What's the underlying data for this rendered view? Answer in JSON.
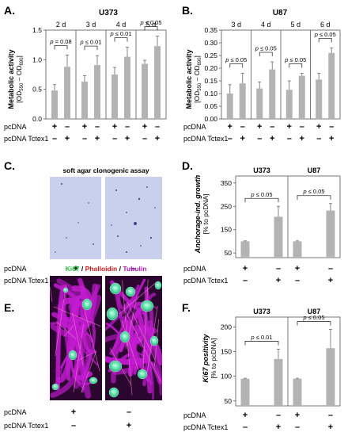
{
  "colors": {
    "bar": "#b3b3b3",
    "agar_bg": "#c9d0ee",
    "colony": "#3a4696",
    "tubulin": "#c21bd0",
    "nucleus": "#55d8a3",
    "phalloidin": "#e04040"
  },
  "icons": [
    "colony-dot",
    "fluorescence-micrograph"
  ],
  "panels": {
    "A": {
      "letter": "A.",
      "cell_line": "U373",
      "ylabel1": "Metabolic activity",
      "ylabel2": "[OD",
      "ylabel_sub1": "550",
      "ylabel_mid": " – OD",
      "ylabel_sub2": "690",
      "ylabel_end": "]",
      "row1_label": "pcDNA",
      "row2_label": "pcDNA Tctex1",
      "row1_signs": "+ –",
      "row2_signs": "– +",
      "groups": [
        "2 d",
        "3 d",
        "4 d",
        "5 d"
      ],
      "pvalues": [
        "p = 0.08",
        "p ≤ 0.01",
        "p ≤ 0.01",
        "p ≤ 0.05"
      ]
    },
    "B": {
      "letter": "B.",
      "cell_line": "U87",
      "ylabel1": "Metabolic activity",
      "ylabel2": "[OD",
      "ylabel_sub1": "550",
      "ylabel_mid": " – OD",
      "ylabel_sub2": "690",
      "ylabel_end": "]",
      "row1_label": "pcDNA",
      "row2_label": "pcDNA Tctex1",
      "row1_signs": "+ –",
      "row2_signs": "– +",
      "groups": [
        "3 d",
        "4 d",
        "5 d",
        "6 d"
      ],
      "pvalues": [
        "p ≤ 0.05",
        "p ≤ 0.05",
        "p ≤ 0.05",
        "p ≤ 0.05"
      ]
    },
    "C": {
      "letter": "C.",
      "title": "soft agar clonogenic assay",
      "row1_label": "pcDNA",
      "row2_label": "pcDNA Tctex1",
      "row1_signs": [
        "+",
        "–"
      ],
      "row2_signs": [
        "–",
        "+"
      ]
    },
    "D": {
      "letter": "D.",
      "ylabel1": "Anchorage-ind. growth",
      "ylabel2": "[% to pcDNA]",
      "groups": [
        "U373",
        "U87"
      ],
      "pvalues": [
        "p ≤ 0.05",
        "p ≤ 0.05"
      ],
      "row1_label": "pcDNA",
      "row2_label": "pcDNA Tctex1",
      "row1_signs": "+ –",
      "row2_signs": "– +"
    },
    "E": {
      "letter": "E.",
      "stain1": "Ki67",
      "sep1": " / ",
      "stain2": "Phalloidin",
      "sep2": " / ",
      "stain3": "Tubulin",
      "row1_label": "pcDNA",
      "row2_label": "pcDNA Tctex1",
      "row1_signs": [
        "+",
        "–"
      ],
      "row2_signs": [
        "–",
        "+"
      ]
    },
    "F": {
      "letter": "F.",
      "ylabel1": "Ki67 positivity",
      "ylabel2": "[% to pcDNA]",
      "groups": [
        "U373",
        "U87"
      ],
      "pvalues": [
        "p ≤ 0.01",
        "p ≤ 0.05"
      ],
      "row1_label": "pcDNA",
      "row2_label": "pcDNA Tctex1",
      "row1_signs": "+ –",
      "row2_signs": "– +"
    }
  },
  "chart_data": [
    {
      "panel": "A",
      "type": "bar",
      "title": "U373",
      "ylim": [
        0,
        1.5
      ],
      "yticks": [
        0,
        0.5,
        1.0,
        1.5
      ],
      "categories": [
        "2 d",
        "3 d",
        "4 d",
        "5 d"
      ],
      "series": [
        {
          "name": "pcDNA",
          "values": [
            0.48,
            0.63,
            0.75,
            0.93
          ],
          "errors": [
            0.1,
            0.1,
            0.12,
            0.06
          ]
        },
        {
          "name": "pcDNA Tctex1",
          "values": [
            0.88,
            0.91,
            1.05,
            1.23
          ],
          "errors": [
            0.2,
            0.16,
            0.16,
            0.17
          ]
        }
      ]
    },
    {
      "panel": "B",
      "type": "bar",
      "title": "U87",
      "ylim": [
        0,
        0.35
      ],
      "yticks": [
        0,
        0.05,
        0.1,
        0.15,
        0.2,
        0.25,
        0.3,
        0.35
      ],
      "categories": [
        "3 d",
        "4 d",
        "5 d",
        "6 d"
      ],
      "series": [
        {
          "name": "pcDNA",
          "values": [
            0.1,
            0.12,
            0.115,
            0.155
          ],
          "errors": [
            0.035,
            0.025,
            0.035,
            0.025
          ]
        },
        {
          "name": "pcDNA Tctex1",
          "values": [
            0.14,
            0.195,
            0.17,
            0.26
          ],
          "errors": [
            0.04,
            0.03,
            0.01,
            0.02
          ]
        }
      ]
    },
    {
      "panel": "D",
      "type": "bar",
      "ylim": [
        30,
        380
      ],
      "yticks": [
        50,
        150,
        250,
        350
      ],
      "categories": [
        "U373",
        "U87"
      ],
      "series": [
        {
          "name": "pcDNA",
          "values": [
            100,
            100
          ],
          "errors": [
            2,
            2
          ]
        },
        {
          "name": "pcDNA Tctex1",
          "values": [
            205,
            232
          ],
          "errors": [
            45,
            30
          ]
        }
      ]
    },
    {
      "panel": "F",
      "type": "bar",
      "ylim": [
        40,
        220
      ],
      "yticks": [
        50,
        100,
        150,
        200
      ],
      "categories": [
        "U373",
        "U87"
      ],
      "series": [
        {
          "name": "pcDNA",
          "values": [
            95,
            95
          ],
          "errors": [
            1,
            1
          ]
        },
        {
          "name": "pcDNA Tctex1",
          "values": [
            135,
            157
          ],
          "errors": [
            20,
            38
          ]
        }
      ]
    }
  ]
}
